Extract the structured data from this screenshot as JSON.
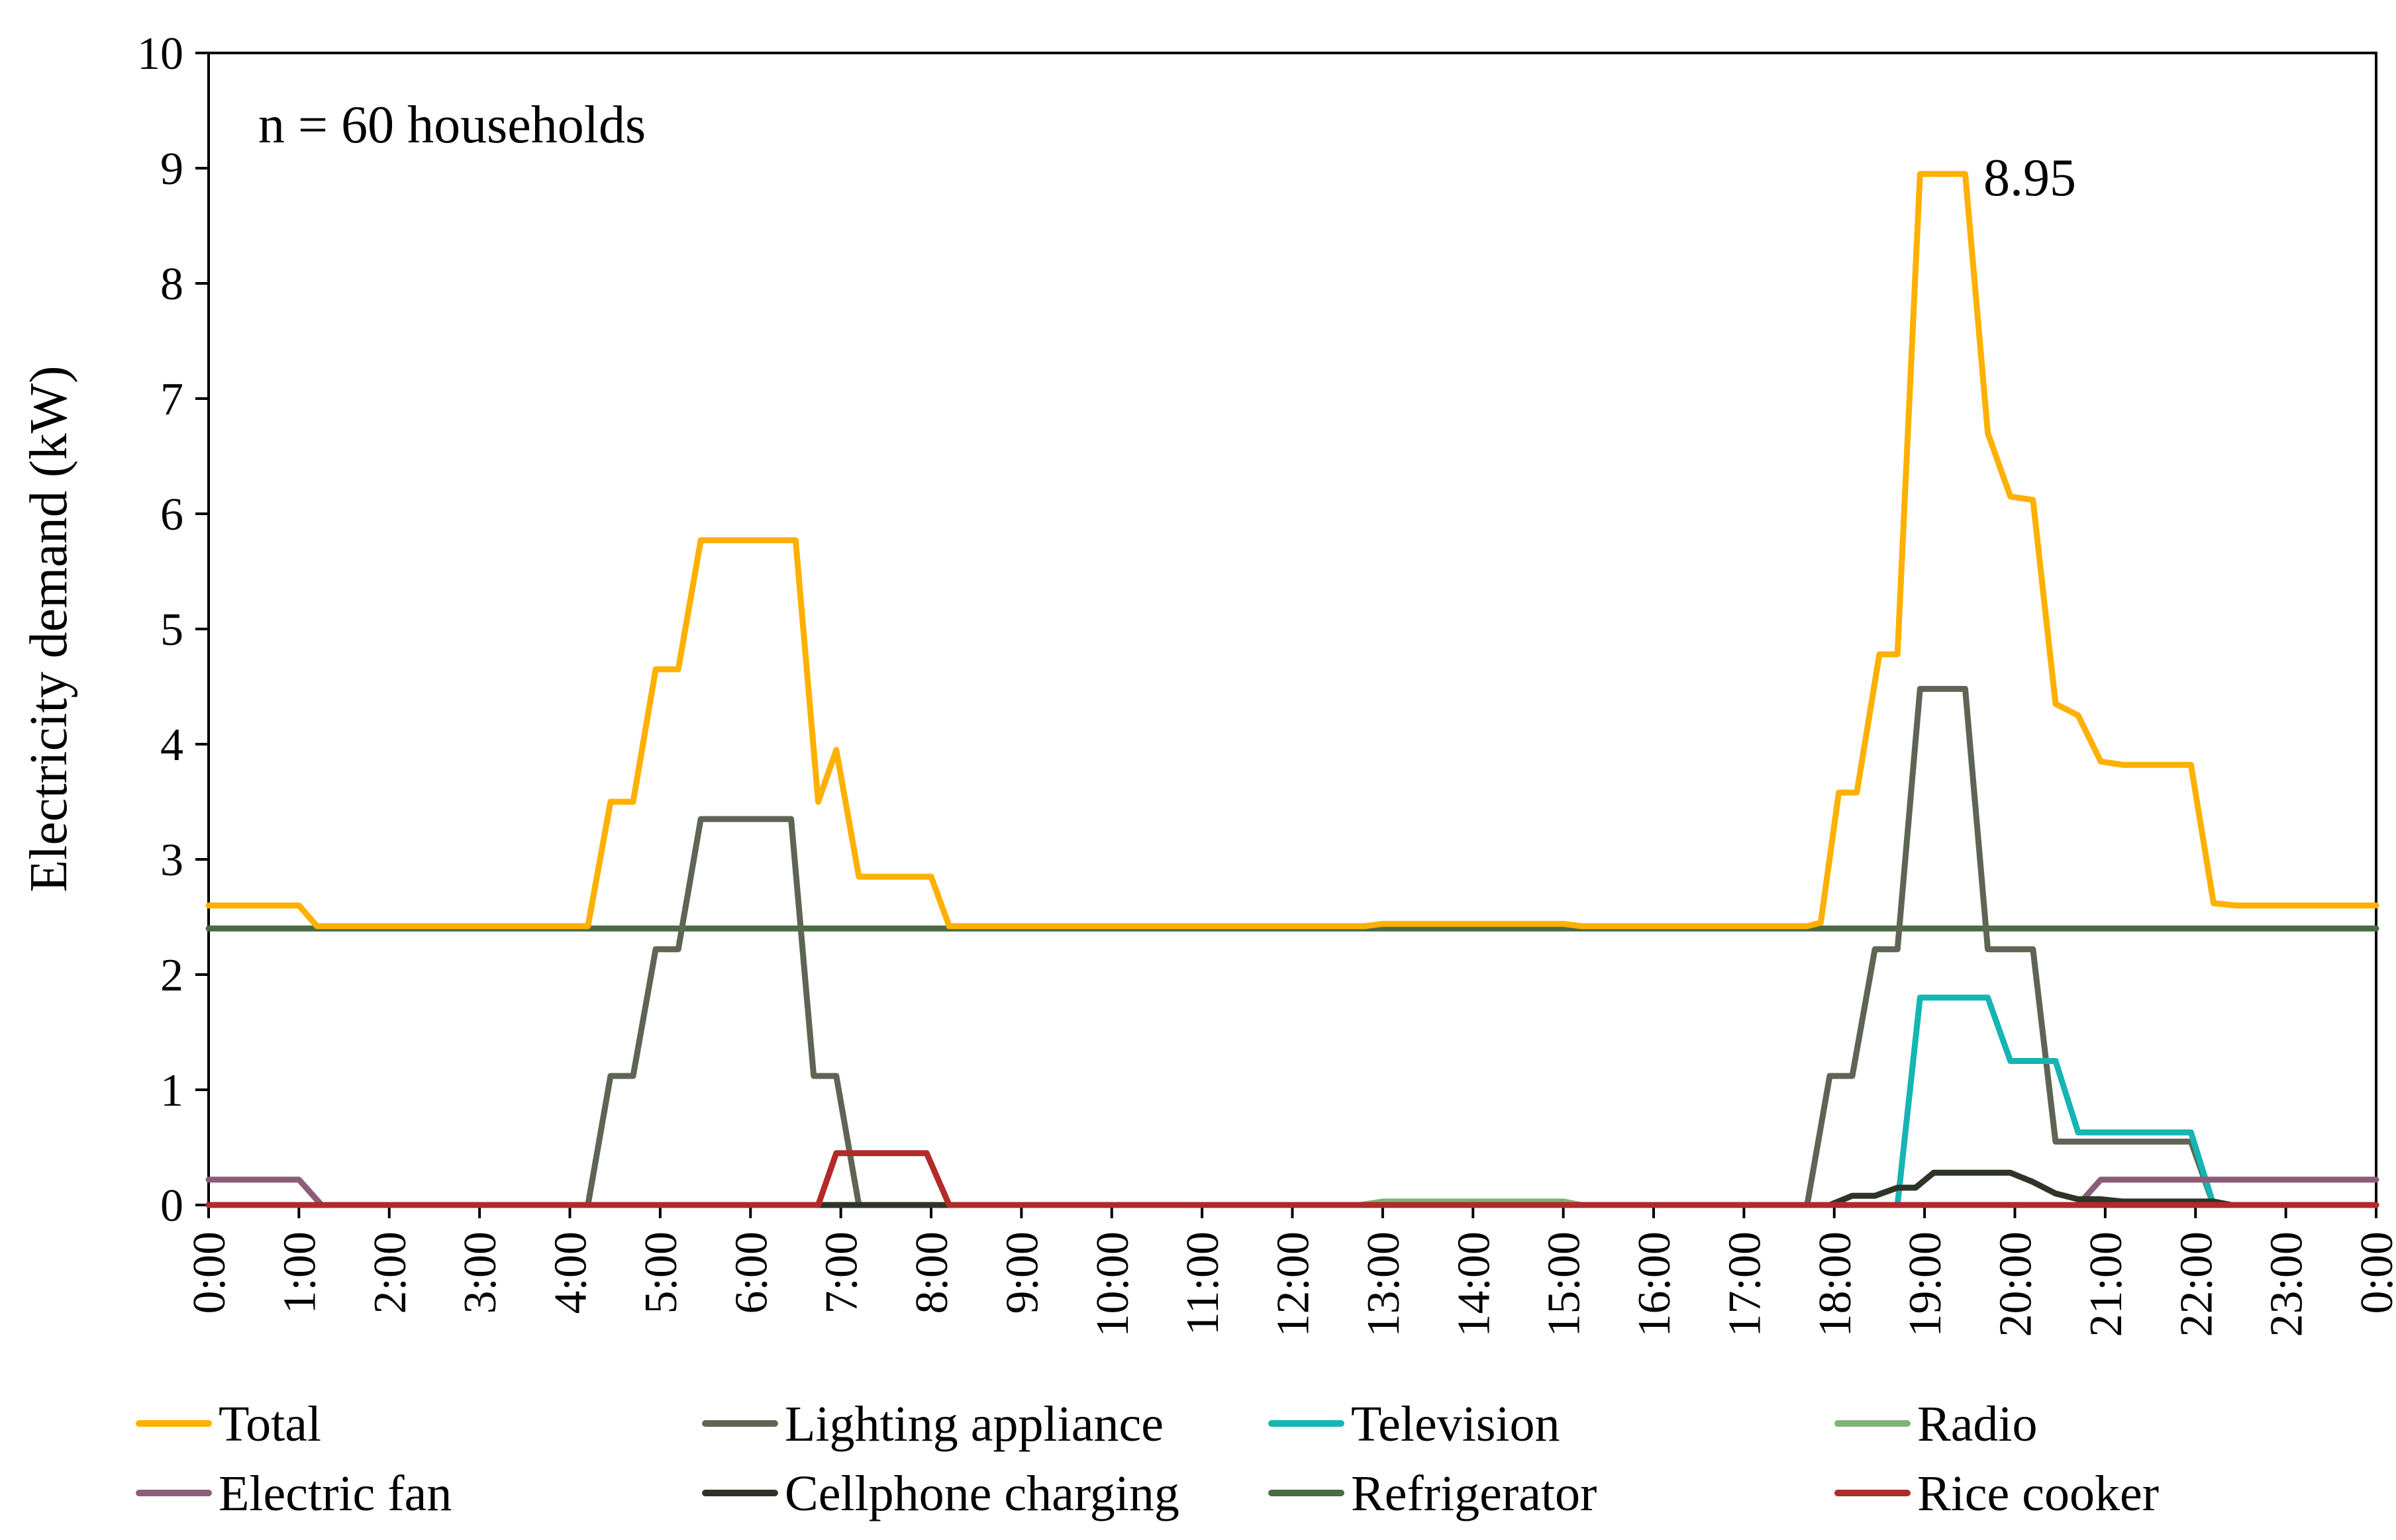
{
  "chart_data": {
    "type": "line",
    "title": "",
    "annotation": "n = 60 households",
    "peak_label": "8.95",
    "xlabel": "",
    "ylabel": "Electricity demand (kW)",
    "ylim": [
      0,
      10
    ],
    "yticks": [
      "0",
      "1",
      "2",
      "3",
      "4",
      "5",
      "6",
      "7",
      "8",
      "9",
      "10"
    ],
    "xticks": [
      "0:00",
      "1:00",
      "2:00",
      "3:00",
      "4:00",
      "5:00",
      "6:00",
      "7:00",
      "8:00",
      "9:00",
      "10:00",
      "11:00",
      "12:00",
      "13:00",
      "14:00",
      "15:00",
      "16:00",
      "17:00",
      "18:00",
      "19:00",
      "20:00",
      "21:00",
      "22:00",
      "23:00",
      "0:00"
    ],
    "xlim_hours": [
      0,
      24
    ],
    "grid": false,
    "legend_position": "bottom",
    "series": [
      {
        "name": "Refrigerator",
        "color": "#4a6b45",
        "points": [
          [
            0,
            2.4
          ],
          [
            24,
            2.4
          ]
        ]
      },
      {
        "name": "Total",
        "color": "#ffb000",
        "points": [
          [
            0,
            2.6
          ],
          [
            1,
            2.6
          ],
          [
            1.2,
            2.42
          ],
          [
            4.2,
            2.42
          ],
          [
            4.45,
            3.5
          ],
          [
            4.7,
            3.5
          ],
          [
            4.95,
            4.65
          ],
          [
            5.2,
            4.65
          ],
          [
            5.45,
            5.77
          ],
          [
            6.5,
            5.77
          ],
          [
            6.75,
            3.5
          ],
          [
            6.95,
            3.95
          ],
          [
            7.2,
            2.85
          ],
          [
            8,
            2.85
          ],
          [
            8.2,
            2.42
          ],
          [
            12.8,
            2.42
          ],
          [
            13,
            2.44
          ],
          [
            15,
            2.44
          ],
          [
            15.2,
            2.42
          ],
          [
            17.7,
            2.42
          ],
          [
            17.85,
            2.45
          ],
          [
            18.05,
            3.58
          ],
          [
            18.25,
            3.58
          ],
          [
            18.5,
            4.78
          ],
          [
            18.7,
            4.78
          ],
          [
            18.95,
            8.95
          ],
          [
            19.45,
            8.95
          ],
          [
            19.7,
            6.7
          ],
          [
            19.95,
            6.15
          ],
          [
            20.2,
            6.12
          ],
          [
            20.45,
            4.35
          ],
          [
            20.7,
            4.25
          ],
          [
            20.95,
            3.85
          ],
          [
            21.2,
            3.82
          ],
          [
            21.95,
            3.82
          ],
          [
            22.2,
            2.62
          ],
          [
            22.45,
            2.6
          ],
          [
            24,
            2.6
          ]
        ]
      },
      {
        "name": "Lighting appliance",
        "color": "#5f6554",
        "points": [
          [
            0,
            0
          ],
          [
            4.2,
            0
          ],
          [
            4.45,
            1.12
          ],
          [
            4.7,
            1.12
          ],
          [
            4.95,
            2.22
          ],
          [
            5.2,
            2.22
          ],
          [
            5.45,
            3.35
          ],
          [
            6.45,
            3.35
          ],
          [
            6.7,
            1.12
          ],
          [
            6.95,
            1.12
          ],
          [
            7.2,
            0
          ],
          [
            17.7,
            0
          ],
          [
            17.95,
            1.12
          ],
          [
            18.2,
            1.12
          ],
          [
            18.45,
            2.22
          ],
          [
            18.7,
            2.22
          ],
          [
            18.95,
            4.48
          ],
          [
            19.45,
            4.48
          ],
          [
            19.7,
            2.22
          ],
          [
            20.2,
            2.22
          ],
          [
            20.45,
            0.55
          ],
          [
            21.95,
            0.55
          ],
          [
            22.2,
            0
          ],
          [
            24,
            0
          ]
        ]
      },
      {
        "name": "Television",
        "color": "#17b4b4",
        "points": [
          [
            0,
            0
          ],
          [
            6.8,
            0
          ],
          [
            8.2,
            0
          ],
          [
            18.7,
            0
          ],
          [
            18.95,
            1.8
          ],
          [
            19.7,
            1.8
          ],
          [
            19.95,
            1.25
          ],
          [
            20.45,
            1.25
          ],
          [
            20.7,
            0.63
          ],
          [
            21.95,
            0.63
          ],
          [
            22.2,
            0
          ],
          [
            24,
            0
          ]
        ]
      },
      {
        "name": "Radio",
        "color": "#7fb27a",
        "points": [
          [
            0,
            0
          ],
          [
            12.75,
            0
          ],
          [
            13,
            0.03
          ],
          [
            15,
            0.03
          ],
          [
            15.2,
            0
          ],
          [
            24,
            0
          ]
        ]
      },
      {
        "name": "Electric fan",
        "color": "#8c5d7b",
        "points": [
          [
            0,
            0.22
          ],
          [
            1,
            0.22
          ],
          [
            1.25,
            0
          ],
          [
            20.7,
            0
          ],
          [
            20.95,
            0.22
          ],
          [
            24,
            0.22
          ]
        ]
      },
      {
        "name": "Cellphone charging",
        "color": "#2e3426",
        "points": [
          [
            0,
            0
          ],
          [
            17.95,
            0
          ],
          [
            18.2,
            0.08
          ],
          [
            18.45,
            0.08
          ],
          [
            18.7,
            0.15
          ],
          [
            18.9,
            0.15
          ],
          [
            19.1,
            0.28
          ],
          [
            19.95,
            0.28
          ],
          [
            20.2,
            0.2
          ],
          [
            20.45,
            0.1
          ],
          [
            20.7,
            0.05
          ],
          [
            20.95,
            0.05
          ],
          [
            21.2,
            0.03
          ],
          [
            22.2,
            0.03
          ],
          [
            22.4,
            0
          ],
          [
            24,
            0
          ]
        ]
      },
      {
        "name": "Rice cooker",
        "color": "#b22a2a",
        "points": [
          [
            0,
            0
          ],
          [
            6.75,
            0
          ],
          [
            6.95,
            0.45
          ],
          [
            7.95,
            0.45
          ],
          [
            8.2,
            0
          ],
          [
            24,
            0
          ]
        ]
      }
    ],
    "legend": [
      {
        "name": "Total",
        "color": "#ffb000"
      },
      {
        "name": "Lighting appliance",
        "color": "#5f6554"
      },
      {
        "name": "Television",
        "color": "#17b4b4"
      },
      {
        "name": "Radio",
        "color": "#7fb27a"
      },
      {
        "name": "Electric fan",
        "color": "#8c5d7b"
      },
      {
        "name": "Cellphone charging",
        "color": "#2e3426"
      },
      {
        "name": "Refrigerator",
        "color": "#4a6b45"
      },
      {
        "name": "Rice cooker",
        "color": "#b22a2a"
      }
    ]
  }
}
